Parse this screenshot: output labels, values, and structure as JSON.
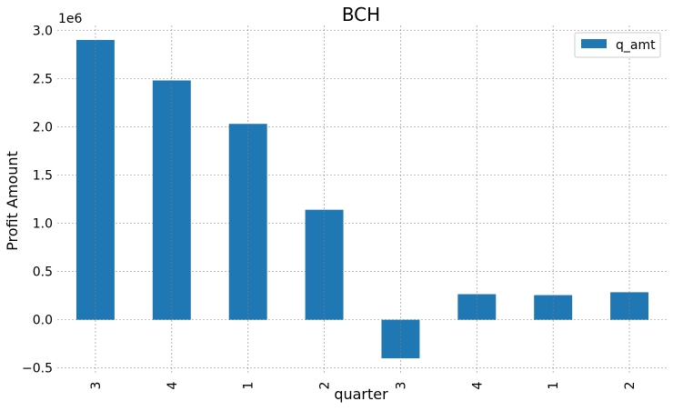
{
  "chart_data": {
    "type": "bar",
    "title": "BCH",
    "xlabel": "quarter",
    "ylabel": "Profit Amount",
    "y_offset_label": "1e6",
    "categories": [
      "3",
      "4",
      "1",
      "2",
      "3",
      "4",
      "1",
      "2"
    ],
    "series": [
      {
        "name": "q_amt",
        "color": "#1f77b4",
        "values": [
          2900000,
          2480000,
          2030000,
          1140000,
          -400000,
          265000,
          255000,
          285000
        ]
      }
    ],
    "y_ticks": [
      -0.5,
      0.0,
      0.5,
      1.0,
      1.5,
      2.0,
      2.5,
      3.0
    ],
    "y_tick_labels": [
      "−0.5",
      "0.0",
      "0.5",
      "1.0",
      "1.5",
      "2.0",
      "2.5",
      "3.0"
    ],
    "y_tick_scale": 1000000,
    "ylim": [
      -550000,
      3050000
    ],
    "grid": true,
    "legend_position": "top-right"
  }
}
